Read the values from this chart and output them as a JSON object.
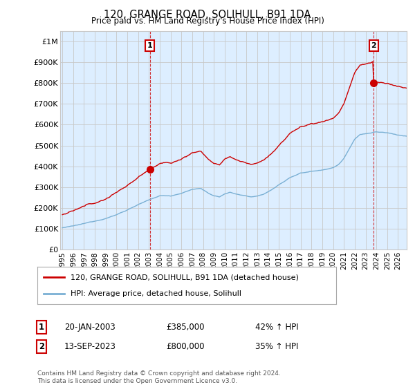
{
  "title": "120, GRANGE ROAD, SOLIHULL, B91 1DA",
  "subtitle": "Price paid vs. HM Land Registry's House Price Index (HPI)",
  "ylabel_ticks": [
    "£0",
    "£100K",
    "£200K",
    "£300K",
    "£400K",
    "£500K",
    "£600K",
    "£700K",
    "£800K",
    "£900K",
    "£1M"
  ],
  "ytick_values": [
    0,
    100000,
    200000,
    300000,
    400000,
    500000,
    600000,
    700000,
    800000,
    900000,
    1000000
  ],
  "ylim": [
    0,
    1050000
  ],
  "xlim_start": 1994.8,
  "xlim_end": 2026.8,
  "xtick_years": [
    1995,
    1996,
    1997,
    1998,
    1999,
    2000,
    2001,
    2002,
    2003,
    2004,
    2005,
    2006,
    2007,
    2008,
    2009,
    2010,
    2011,
    2012,
    2013,
    2014,
    2015,
    2016,
    2017,
    2018,
    2019,
    2020,
    2021,
    2022,
    2023,
    2024,
    2025,
    2026
  ],
  "sale1_x": 2003.05,
  "sale1_y": 385000,
  "sale2_x": 2023.71,
  "sale2_y": 800000,
  "legend_line1": "120, GRANGE ROAD, SOLIHULL, B91 1DA (detached house)",
  "legend_line2": "HPI: Average price, detached house, Solihull",
  "annotation1_label": "1",
  "annotation1_date": "20-JAN-2003",
  "annotation1_price": "£385,000",
  "annotation1_hpi": "42% ↑ HPI",
  "annotation2_label": "2",
  "annotation2_date": "13-SEP-2023",
  "annotation2_price": "£800,000",
  "annotation2_hpi": "35% ↑ HPI",
  "footer": "Contains HM Land Registry data © Crown copyright and database right 2024.\nThis data is licensed under the Open Government Licence v3.0.",
  "red_color": "#cc0000",
  "blue_color": "#7ab0d4",
  "grid_color": "#c8c8c8",
  "bg_color": "#ffffff",
  "plot_bg": "#ddeeff",
  "label_box_color": "#cc0000"
}
